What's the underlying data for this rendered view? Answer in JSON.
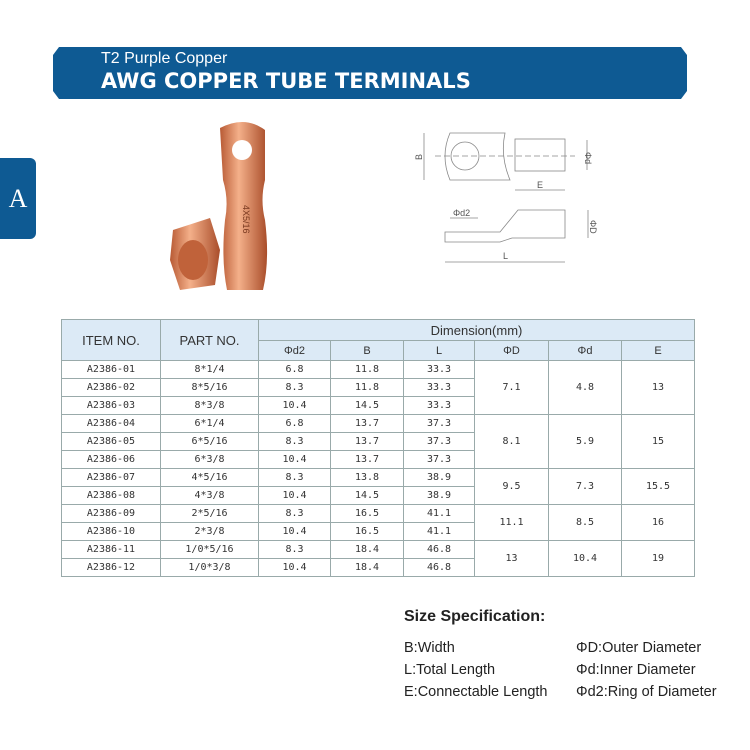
{
  "header": {
    "subtitle": "T2 Purple Copper",
    "title": "AWG COPPER TUBE TERMINALS"
  },
  "side_tab": {
    "label": "A"
  },
  "photo": {
    "stamp": "4X5/16"
  },
  "drawing": {
    "labels": {
      "B": "B",
      "d": "Φd",
      "E": "E",
      "d2": "Φd2",
      "D": "ΦD",
      "L": "L"
    }
  },
  "table": {
    "headers": {
      "item": "ITEM NO.",
      "part": "PART NO.",
      "dimension": "Dimension(mm)",
      "cols": [
        "Φd2",
        "B",
        "L",
        "ΦD",
        "Φd",
        "E"
      ]
    },
    "rows": [
      [
        "A2386-01",
        "8*1/4",
        "6.8",
        "11.8",
        "33.3"
      ],
      [
        "A2386-02",
        "8*5/16",
        "8.3",
        "11.8",
        "33.3"
      ],
      [
        "A2386-03",
        "8*3/8",
        "10.4",
        "14.5",
        "33.3"
      ],
      [
        "A2386-04",
        "6*1/4",
        "6.8",
        "13.7",
        "37.3"
      ],
      [
        "A2386-05",
        "6*5/16",
        "8.3",
        "13.7",
        "37.3"
      ],
      [
        "A2386-06",
        "6*3/8",
        "10.4",
        "13.7",
        "37.3"
      ],
      [
        "A2386-07",
        "4*5/16",
        "8.3",
        "13.8",
        "38.9"
      ],
      [
        "A2386-08",
        "4*3/8",
        "10.4",
        "14.5",
        "38.9"
      ],
      [
        "A2386-09",
        "2*5/16",
        "8.3",
        "16.5",
        "41.1"
      ],
      [
        "A2386-10",
        "2*3/8",
        "10.4",
        "16.5",
        "41.1"
      ],
      [
        "A2386-11",
        "1/0*5/16",
        "8.3",
        "18.4",
        "46.8"
      ],
      [
        "A2386-12",
        "1/0*3/8",
        "10.4",
        "18.4",
        "46.8"
      ]
    ],
    "groups": [
      {
        "rows": 3,
        "D": "7.1",
        "d": "4.8",
        "E": "13"
      },
      {
        "rows": 3,
        "D": "8.1",
        "d": "5.9",
        "E": "15"
      },
      {
        "rows": 2,
        "D": "9.5",
        "d": "7.3",
        "E": "15.5"
      },
      {
        "rows": 2,
        "D": "11.1",
        "d": "8.5",
        "E": "16"
      },
      {
        "rows": 2,
        "D": "13",
        "d": "10.4",
        "E": "19"
      }
    ]
  },
  "spec": {
    "title": "Size Specification:",
    "items": [
      "B:Width",
      "ΦD:Outer Diameter",
      "L:Total Length",
      "Φd:Inner Diameter",
      "E:Connectable Length",
      "Φd2:Ring of Diameter"
    ]
  },
  "colors": {
    "brand": "#0e5a93",
    "header_bg": "#dceaf6",
    "copper": "#d9825a"
  }
}
